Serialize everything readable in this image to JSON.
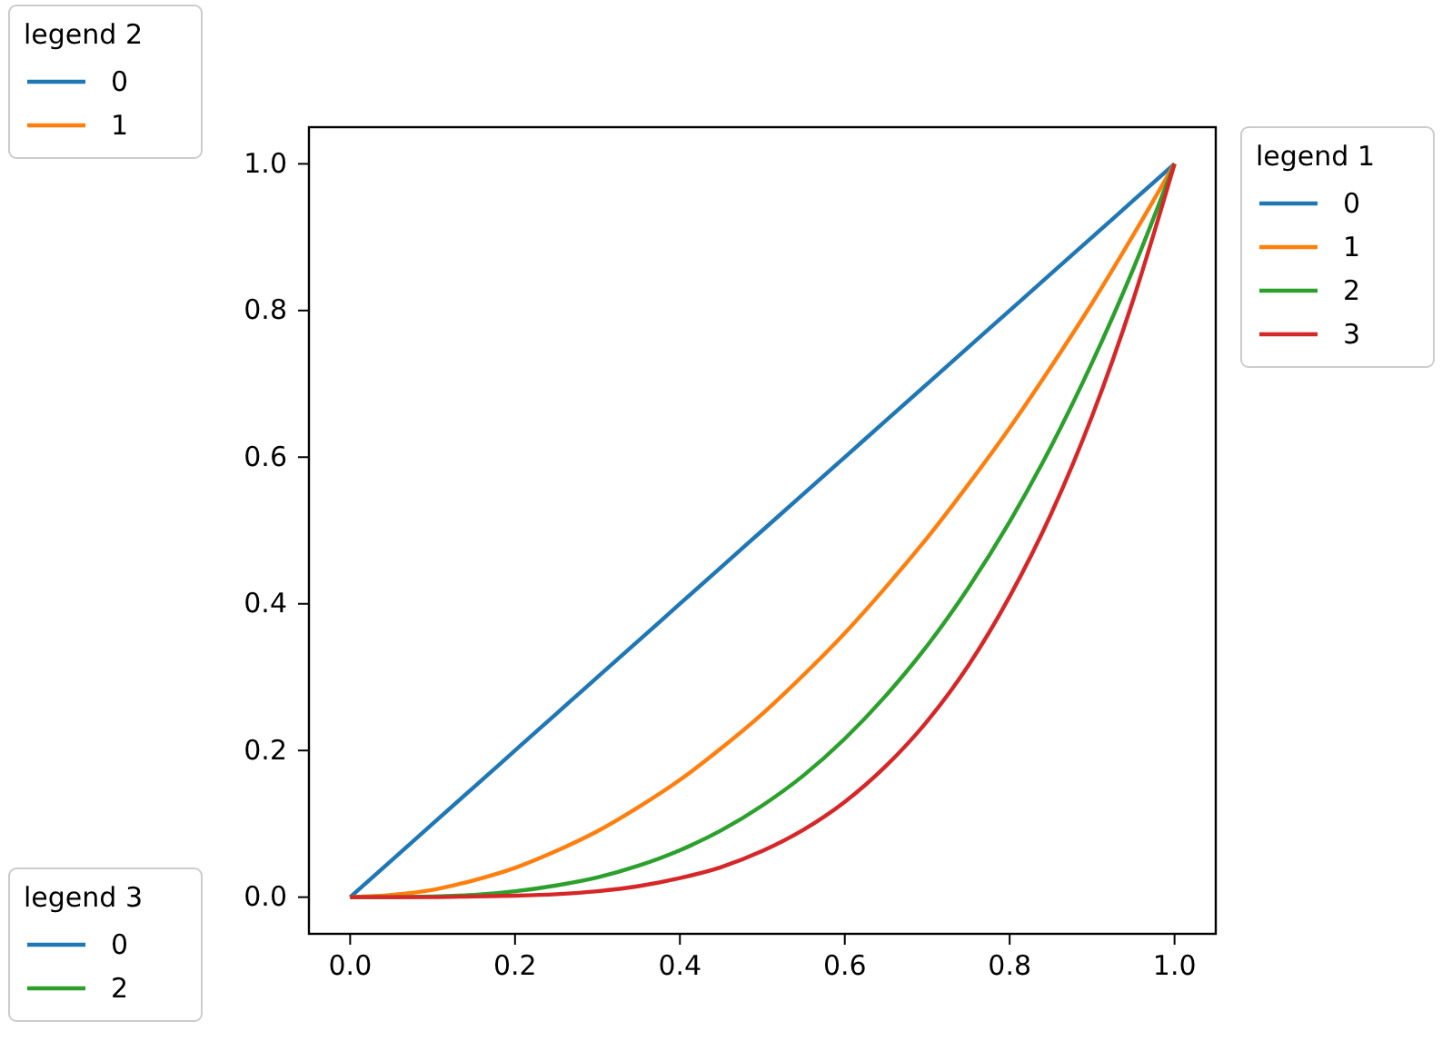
{
  "chart_data": {
    "type": "line",
    "x": [
      0,
      0.05,
      0.1,
      0.15,
      0.2,
      0.25,
      0.3,
      0.35,
      0.4,
      0.45,
      0.5,
      0.55,
      0.6,
      0.65,
      0.7,
      0.75,
      0.8,
      0.85,
      0.9,
      0.95,
      1
    ],
    "series": [
      {
        "name": "0",
        "color": "#1f77b4",
        "values": [
          0,
          0.05,
          0.1,
          0.15,
          0.2,
          0.25,
          0.3,
          0.35,
          0.4,
          0.45,
          0.5,
          0.55,
          0.6,
          0.65,
          0.7,
          0.75,
          0.8,
          0.85,
          0.9,
          0.95,
          1
        ]
      },
      {
        "name": "1",
        "color": "#ff7f0e",
        "values": [
          0,
          0.003,
          0.01,
          0.023,
          0.04,
          0.063,
          0.09,
          0.123,
          0.16,
          0.203,
          0.25,
          0.303,
          0.36,
          0.423,
          0.49,
          0.563,
          0.64,
          0.723,
          0.81,
          0.903,
          1
        ]
      },
      {
        "name": "2",
        "color": "#2ca02c",
        "values": [
          0,
          0,
          0.001,
          0.003,
          0.008,
          0.016,
          0.027,
          0.043,
          0.064,
          0.091,
          0.125,
          0.166,
          0.216,
          0.275,
          0.343,
          0.422,
          0.512,
          0.614,
          0.729,
          0.857,
          1
        ]
      },
      {
        "name": "3",
        "color": "#d62728",
        "values": [
          0,
          0,
          0,
          0.001,
          0.002,
          0.004,
          0.008,
          0.015,
          0.026,
          0.041,
          0.063,
          0.092,
          0.13,
          0.179,
          0.24,
          0.316,
          0.41,
          0.522,
          0.656,
          0.815,
          1
        ]
      }
    ],
    "xlim": [
      -0.05,
      1.05
    ],
    "ylim": [
      -0.05,
      1.05
    ],
    "xticks": [
      {
        "value": 0,
        "label": "0.0"
      },
      {
        "value": 0.2,
        "label": "0.2"
      },
      {
        "value": 0.4,
        "label": "0.4"
      },
      {
        "value": 0.6,
        "label": "0.6"
      },
      {
        "value": 0.8,
        "label": "0.8"
      },
      {
        "value": 1,
        "label": "1.0"
      }
    ],
    "yticks": [
      {
        "value": 0,
        "label": "0.0"
      },
      {
        "value": 0.2,
        "label": "0.2"
      },
      {
        "value": 0.4,
        "label": "0.4"
      },
      {
        "value": 0.6,
        "label": "0.6"
      },
      {
        "value": 0.8,
        "label": "0.8"
      },
      {
        "value": 1,
        "label": "1.0"
      }
    ],
    "legend": "right",
    "legend_title": "legend 1",
    "annotations": [
      "legend 2",
      "legend 3"
    ],
    "marker": "none",
    "line_style": "solid",
    "grid": false
  }
}
